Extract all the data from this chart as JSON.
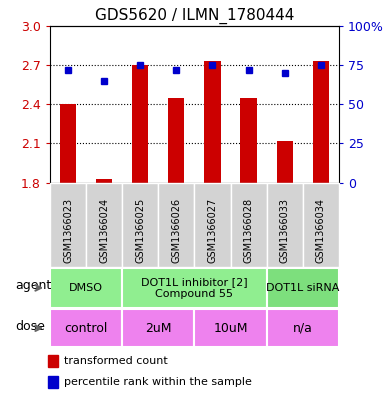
{
  "title": "GDS5620 / ILMN_1780444",
  "samples": [
    "GSM1366023",
    "GSM1366024",
    "GSM1366025",
    "GSM1366026",
    "GSM1366027",
    "GSM1366028",
    "GSM1366033",
    "GSM1366034"
  ],
  "bar_values": [
    2.4,
    1.83,
    2.7,
    2.45,
    2.73,
    2.45,
    2.12,
    2.73
  ],
  "dot_values": [
    72,
    65,
    75,
    72,
    75,
    72,
    70,
    75
  ],
  "ylim_left": [
    1.8,
    3.0
  ],
  "ylim_right": [
    0,
    100
  ],
  "yticks_left": [
    1.8,
    2.1,
    2.4,
    2.7,
    3.0
  ],
  "yticks_right": [
    0,
    25,
    50,
    75,
    100
  ],
  "bar_color": "#cc0000",
  "dot_color": "#0000cc",
  "grid_color": "#000000",
  "agent_groups": [
    {
      "label": "DMSO",
      "start": 0,
      "end": 2,
      "color": "#90ee90"
    },
    {
      "label": "DOT1L inhibitor [2]\nCompound 55",
      "start": 2,
      "end": 6,
      "color": "#90ee90"
    },
    {
      "label": "DOT1L siRNA",
      "start": 6,
      "end": 8,
      "color": "#7ddf7d"
    }
  ],
  "dose_groups": [
    {
      "label": "control",
      "start": 0,
      "end": 2,
      "color": "#ee82ee"
    },
    {
      "label": "2uM",
      "start": 2,
      "end": 4,
      "color": "#ee82ee"
    },
    {
      "label": "10uM",
      "start": 4,
      "end": 6,
      "color": "#ee82ee"
    },
    {
      "label": "n/a",
      "start": 6,
      "end": 8,
      "color": "#ee82ee"
    }
  ],
  "legend_items": [
    {
      "label": "transformed count",
      "color": "#cc0000"
    },
    {
      "label": "percentile rank within the sample",
      "color": "#0000cc"
    }
  ],
  "bar_width": 0.45,
  "xlabel_fontsize": 7,
  "title_fontsize": 11,
  "tick_fontsize": 9,
  "agent_fontsize": 8,
  "dose_fontsize": 9,
  "legend_fontsize": 8,
  "label_fontsize": 9
}
